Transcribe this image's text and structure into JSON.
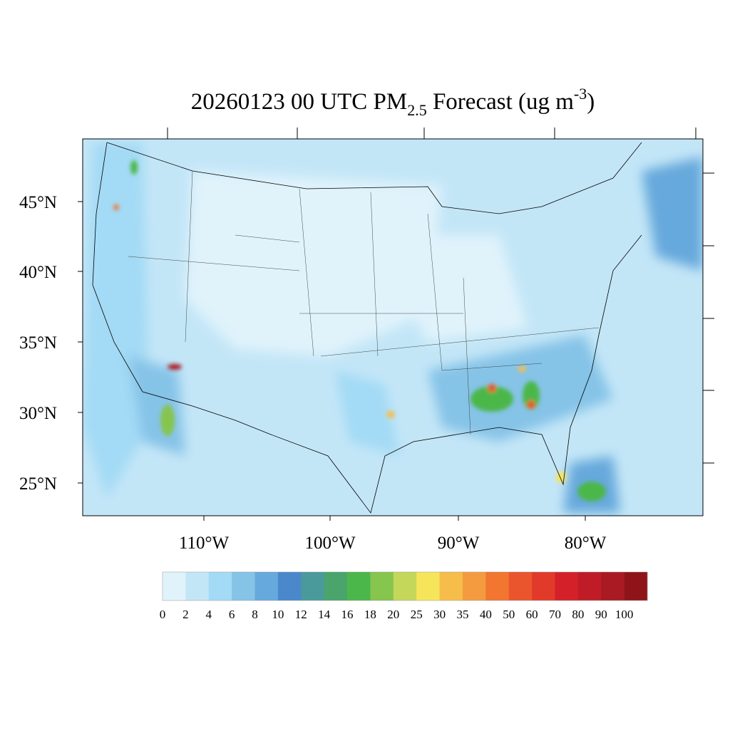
{
  "title": {
    "main": "20260123 00 UTC PM",
    "subscript": "2.5",
    "rest": " Forecast (ug m",
    "superscript": "-3",
    "end": ")"
  },
  "map": {
    "lat_labels": [
      "45°N",
      "40°N",
      "35°N",
      "30°N",
      "25°N"
    ],
    "lon_labels": [
      "110°W",
      "100°W",
      "90°W",
      "80°W"
    ]
  },
  "colorbar": {
    "levels": [
      0,
      2,
      4,
      6,
      8,
      10,
      12,
      14,
      16,
      18,
      20,
      25,
      30,
      35,
      40,
      50,
      60,
      70,
      80,
      90,
      100
    ],
    "colors": [
      "#e0f3fb",
      "#c3e6f7",
      "#a3daf5",
      "#85c3e7",
      "#66a9dc",
      "#4a88cb",
      "#4a9a9c",
      "#49a56b",
      "#4bb74a",
      "#86c54e",
      "#c5d75a",
      "#f6e45a",
      "#f6bd4b",
      "#f49b40",
      "#f27530",
      "#eb552d",
      "#e13a2b",
      "#d42129",
      "#bf1c27",
      "#a91a22",
      "#8f1419"
    ]
  }
}
